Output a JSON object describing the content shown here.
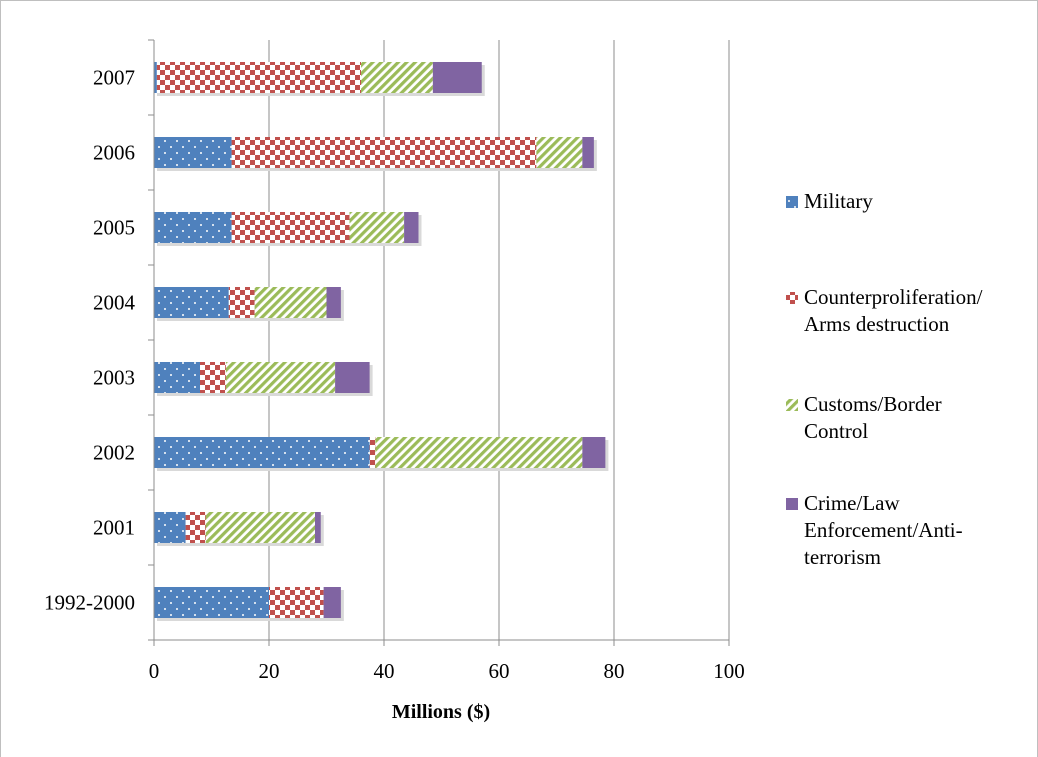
{
  "chart_data": {
    "type": "bar",
    "orientation": "horizontal",
    "stacked": true,
    "title": "",
    "xlabel": "Millions ($)",
    "ylabel": "",
    "xlim": [
      0,
      100
    ],
    "x_ticks": [
      "0",
      "20",
      "40",
      "60",
      "80",
      "100"
    ],
    "grid": "vertical",
    "legend_position": "right",
    "categories": [
      "2007",
      "2006",
      "2005",
      "2004",
      "2003",
      "2002",
      "2001",
      "1992-2000"
    ],
    "series": [
      {
        "name": "Military",
        "color": "#4f81bd",
        "pattern": "dots",
        "values": [
          0.5,
          13.5,
          13.5,
          13,
          8,
          37.5,
          5.5,
          20
        ]
      },
      {
        "name": "Counterproliferation/ Arms destruction",
        "color": "#c0504d",
        "pattern": "checker",
        "values": [
          35.5,
          53,
          20.5,
          4.5,
          4.5,
          1,
          3.5,
          9.5
        ]
      },
      {
        "name": "Customs/Border Control",
        "color": "#9bbb59",
        "pattern": "diagonal",
        "values": [
          12.5,
          8,
          9.5,
          12.5,
          19,
          36,
          19,
          0
        ]
      },
      {
        "name": "Crime/Law Enforcement/Anti-terrorism",
        "color": "#8064a2",
        "pattern": "solid",
        "values": [
          8.5,
          2,
          2.5,
          2.5,
          6,
          4,
          1,
          3
        ]
      }
    ]
  },
  "legend": {
    "items": [
      {
        "lines": [
          "Military"
        ]
      },
      {
        "lines": [
          "Counterproliferation/",
          "Arms destruction"
        ]
      },
      {
        "lines": [
          "Customs/Border",
          "Control"
        ]
      },
      {
        "lines": [
          "Crime/Law",
          "Enforcement/Anti-",
          "terrorism"
        ]
      }
    ]
  }
}
